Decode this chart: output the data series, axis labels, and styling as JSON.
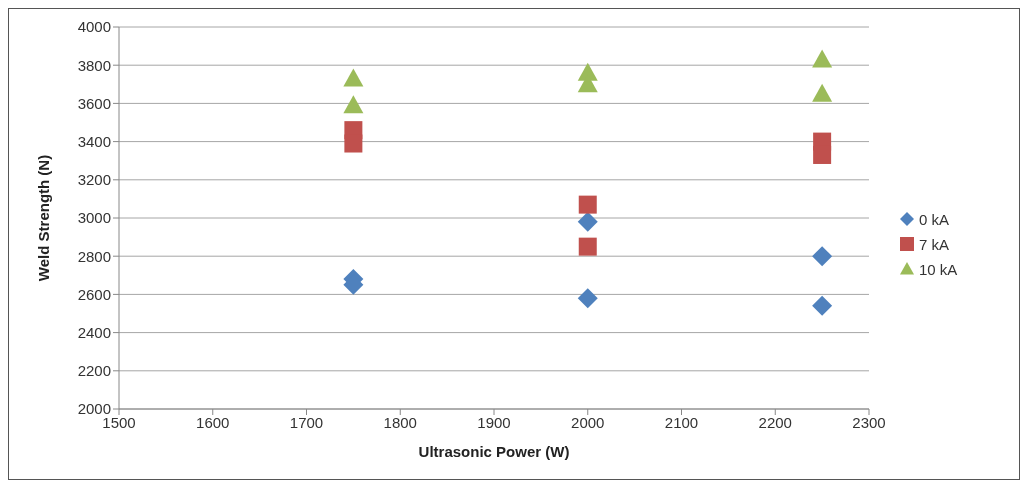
{
  "chart_data": {
    "type": "scatter",
    "xlabel": "Ultrasonic Power (W)",
    "ylabel": "Weld Strength (N)",
    "xlim": [
      1500,
      2300
    ],
    "xticks": [
      1500,
      1600,
      1700,
      1800,
      1900,
      2000,
      2100,
      2200,
      2300
    ],
    "ylim": [
      2000,
      4000
    ],
    "yticks": [
      2000,
      2200,
      2400,
      2600,
      2800,
      3000,
      3200,
      3400,
      3600,
      3800,
      4000
    ],
    "grid": "y",
    "legend": "right",
    "series": [
      {
        "name": "0 kA",
        "color": "#4f81bd",
        "marker": "diamond",
        "x": [
          1750,
          1750,
          2000,
          2000,
          2250,
          2250
        ],
        "values": [
          2680,
          2650,
          2980,
          2580,
          2800,
          2540
        ]
      },
      {
        "name": "7 kA",
        "color": "#c0504d",
        "marker": "square",
        "x": [
          1750,
          1750,
          2000,
          2000,
          2250,
          2250
        ],
        "values": [
          3460,
          3390,
          3070,
          2850,
          3400,
          3330
        ]
      },
      {
        "name": "10 kA",
        "color": "#9bbb59",
        "marker": "triangle",
        "x": [
          1750,
          1750,
          2000,
          2000,
          2250,
          2250
        ],
        "values": [
          3730,
          3590,
          3760,
          3700,
          3830,
          3650
        ]
      }
    ]
  }
}
